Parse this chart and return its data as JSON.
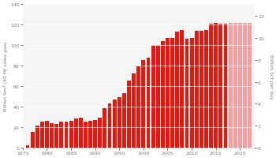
{
  "years": [
    1976,
    1977,
    1978,
    1979,
    1980,
    1981,
    1982,
    1983,
    1984,
    1985,
    1986,
    1987,
    1988,
    1989,
    1990,
    1991,
    1992,
    1993,
    1994,
    1995,
    1996,
    1997,
    1998,
    1999,
    2000,
    2001,
    2002,
    2003,
    2004,
    2005,
    2006,
    2007,
    2008,
    2009,
    2010,
    2011,
    2012,
    2013,
    2014,
    2015,
    2016,
    2017,
    2018,
    2019,
    2020,
    2021,
    2022
  ],
  "values": [
    2,
    15,
    21,
    25,
    26,
    24,
    23,
    25,
    25,
    26,
    28,
    29,
    25,
    26,
    27,
    29,
    38,
    43,
    47,
    49,
    53,
    65,
    72,
    79,
    85,
    88,
    100,
    100,
    104,
    107,
    107,
    113,
    115,
    106,
    107,
    114,
    114,
    115,
    121,
    122,
    121,
    121,
    122,
    122,
    122,
    122,
    122
  ],
  "forecast_start_year": 2018,
  "actual_color": "#e8160c",
  "forecast_color": "#f0a0a0",
  "ylabel_left": "Billion Sm³ (40 MJ sales gas)",
  "ylabel_right": "Billion Scf per day",
  "ylim_left": [
    0,
    140
  ],
  "ylim_right": [
    0,
    13.1
  ],
  "yticks_left": [
    0,
    20,
    40,
    60,
    80,
    100,
    120,
    140
  ],
  "yticks_right": [
    0,
    2,
    4,
    6,
    8,
    10,
    12
  ],
  "xlim": [
    1975,
    2023
  ],
  "xticks": [
    1975,
    1980,
    1985,
    1990,
    1995,
    2000,
    2005,
    2010,
    2015,
    2020
  ],
  "bar_width": 0.8,
  "fig_width": 3.5,
  "fig_height": 2.01,
  "dpi": 100
}
